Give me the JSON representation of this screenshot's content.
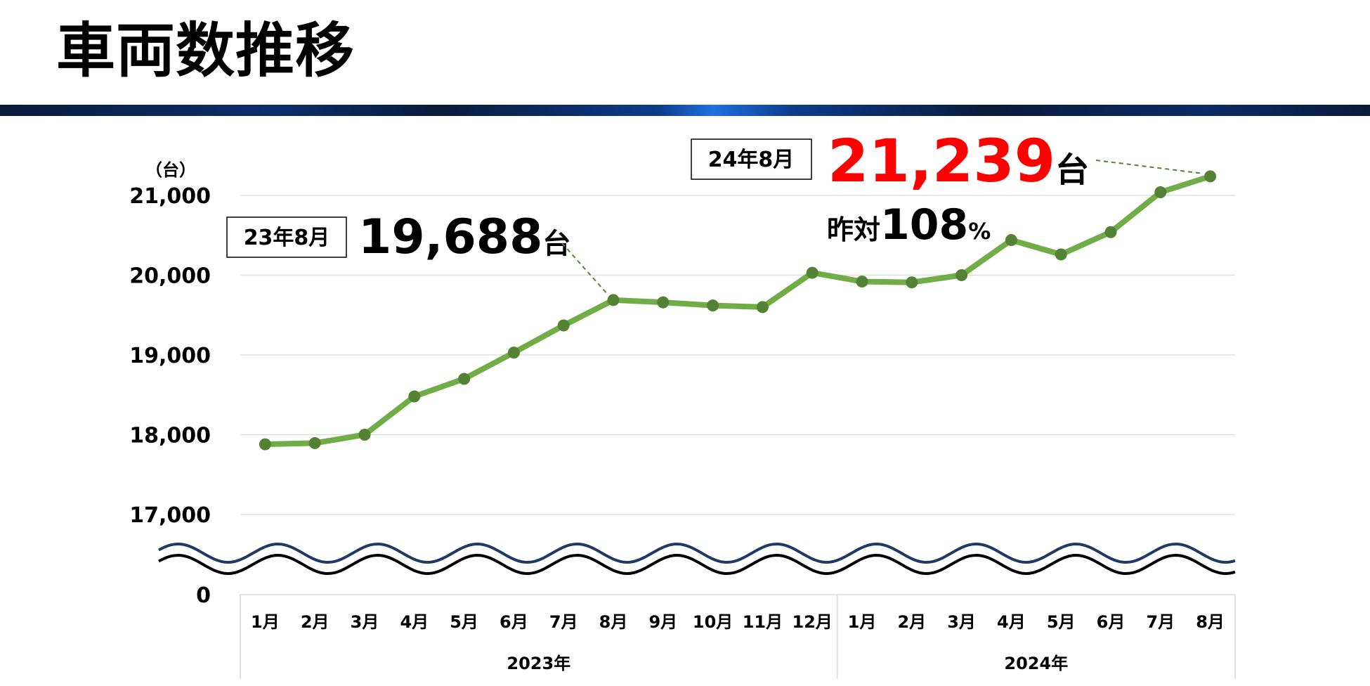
{
  "page": {
    "title": "車両数推移"
  },
  "colors": {
    "line": "#70ad47",
    "marker": "#548235",
    "highlight": "#ff0000",
    "band": "#0b2f6e",
    "wave_top": "#1f3864",
    "wave_bottom": "#000000"
  },
  "chart_data": {
    "type": "line",
    "unit_label": "（台）",
    "y_ticks": [
      "21,000",
      "20,000",
      "19,000",
      "18,000",
      "17,000",
      "0"
    ],
    "y_tick_values": [
      21000,
      20000,
      19000,
      18000,
      17000
    ],
    "ylim": [
      17000,
      21000
    ],
    "axis_break": true,
    "categories": [
      "1月",
      "2月",
      "3月",
      "4月",
      "5月",
      "6月",
      "7月",
      "8月",
      "9月",
      "10月",
      "11月",
      "12月",
      "1月",
      "2月",
      "3月",
      "4月",
      "5月",
      "6月",
      "7月",
      "8月"
    ],
    "groups": [
      {
        "label": "2023年",
        "count": 12
      },
      {
        "label": "2024年",
        "count": 8
      }
    ],
    "values": [
      17880,
      17895,
      18000,
      18480,
      18700,
      19030,
      19370,
      19688,
      19660,
      19620,
      19600,
      20030,
      19920,
      19910,
      20000,
      20440,
      20260,
      20540,
      21040,
      21239
    ],
    "grid": true,
    "annotations": [
      {
        "box": "23年8月",
        "value": "19,688",
        "unit": "台"
      },
      {
        "box": "24年8月",
        "value": "21,239",
        "unit": "台",
        "yoy_label": "昨対",
        "yoy_value": "108",
        "yoy_unit": "%"
      }
    ]
  }
}
